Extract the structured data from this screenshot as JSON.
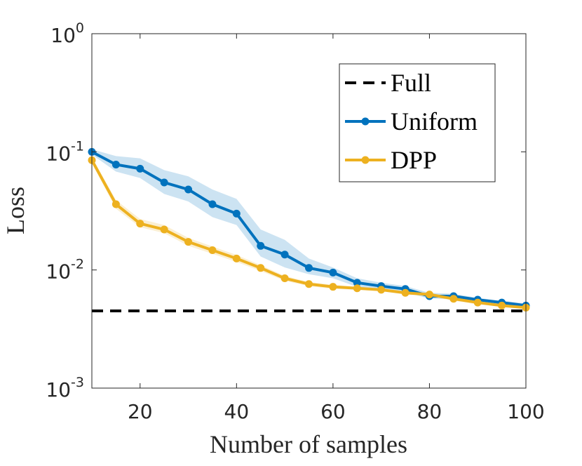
{
  "chart_data": {
    "type": "line",
    "xlabel": "Number of samples",
    "ylabel": "Loss",
    "log_y": true,
    "xlim": [
      10,
      100
    ],
    "xticks": [
      20,
      40,
      60,
      80,
      100
    ],
    "ylim": [
      0.001,
      1
    ],
    "yticks": [
      {
        "value": 0.001,
        "label": "10^-3"
      },
      {
        "value": 0.01,
        "label": "10^-2"
      },
      {
        "value": 0.1,
        "label": "10^-1"
      },
      {
        "value": 1,
        "label": "10^0"
      }
    ],
    "legend": "northeast",
    "reference_line": {
      "name": "Full",
      "color": "#000000",
      "value": 0.0045
    },
    "x": [
      10,
      15,
      20,
      25,
      30,
      35,
      40,
      45,
      50,
      55,
      60,
      65,
      70,
      75,
      80,
      85,
      90,
      95,
      100
    ],
    "series": [
      {
        "name": "Uniform",
        "color": "#0072bd",
        "values": [
          0.1,
          0.078,
          0.072,
          0.055,
          0.048,
          0.036,
          0.03,
          0.016,
          0.0135,
          0.0104,
          0.0095,
          0.0078,
          0.0073,
          0.0069,
          0.006,
          0.006,
          0.0056,
          0.0053,
          0.005
        ],
        "upper": [
          0.105,
          0.092,
          0.088,
          0.07,
          0.062,
          0.048,
          0.04,
          0.022,
          0.018,
          0.0125,
          0.0105,
          0.0085,
          0.0078,
          0.0073,
          0.0064,
          0.0063,
          0.0058,
          0.0055,
          0.0052
        ],
        "lower": [
          0.095,
          0.068,
          0.06,
          0.044,
          0.038,
          0.028,
          0.024,
          0.013,
          0.0105,
          0.0092,
          0.0085,
          0.0072,
          0.0068,
          0.0065,
          0.0057,
          0.0057,
          0.0054,
          0.0051,
          0.0048
        ]
      },
      {
        "name": "DPP",
        "color": "#edb120",
        "values": [
          0.085,
          0.036,
          0.0247,
          0.022,
          0.0173,
          0.0147,
          0.0125,
          0.0104,
          0.0085,
          0.0076,
          0.0072,
          0.007,
          0.0068,
          0.0064,
          0.0062,
          0.0057,
          0.0053,
          0.005,
          0.0048
        ],
        "upper": [
          0.09,
          0.039,
          0.027,
          0.024,
          0.0187,
          0.0158,
          0.0134,
          0.011,
          0.0089,
          0.0079,
          0.0075,
          0.0072,
          0.007,
          0.0066,
          0.0064,
          0.0059,
          0.0055,
          0.0051,
          0.0049
        ],
        "lower": [
          0.08,
          0.033,
          0.023,
          0.0205,
          0.016,
          0.0137,
          0.0117,
          0.0098,
          0.0081,
          0.0073,
          0.0069,
          0.0068,
          0.0066,
          0.0062,
          0.006,
          0.0055,
          0.0051,
          0.0049,
          0.0047
        ]
      }
    ]
  }
}
